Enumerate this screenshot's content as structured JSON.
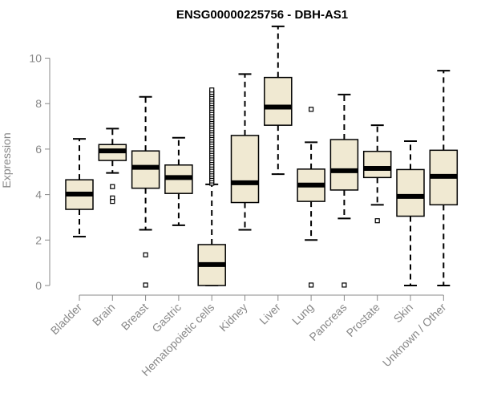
{
  "chart_data": {
    "type": "box",
    "title": "ENSG00000225756 - DBH-AS1",
    "ylabel": "Expression",
    "xlabel": "",
    "ylim": [
      0,
      11.5
    ],
    "yticks": [
      0,
      2,
      4,
      6,
      8,
      10
    ],
    "grid": false,
    "legend": "none",
    "box_fill": "#f0e9d2",
    "box_stroke": "#000000",
    "axis_color": "#888888",
    "categories": [
      "Bladder",
      "Brain",
      "Breast",
      "Gastric",
      "Hematopoietic cells",
      "Kidney",
      "Liver",
      "Lung",
      "Pancreas",
      "Prostate",
      "Skin",
      "Unknown / Other"
    ],
    "boxes": [
      {
        "category": "Bladder",
        "whisker_low": 2.15,
        "q1": 3.35,
        "median": 4.02,
        "q3": 4.65,
        "whisker_high": 6.45,
        "outliers": []
      },
      {
        "category": "Brain",
        "whisker_low": 4.95,
        "q1": 5.5,
        "median": 5.92,
        "q3": 6.2,
        "whisker_high": 6.9,
        "outliers": [
          4.35,
          3.85,
          3.7
        ]
      },
      {
        "category": "Breast",
        "whisker_low": 2.45,
        "q1": 4.28,
        "median": 5.2,
        "q3": 5.92,
        "whisker_high": 8.3,
        "outliers": [
          1.35,
          0.02
        ]
      },
      {
        "category": "Gastric",
        "whisker_low": 2.65,
        "q1": 4.05,
        "median": 4.75,
        "q3": 5.3,
        "whisker_high": 6.5,
        "outliers": []
      },
      {
        "category": "Hematopoietic cells",
        "whisker_low": 0.0,
        "q1": 0.0,
        "median": 0.92,
        "q3": 1.8,
        "whisker_high": 4.45,
        "outliers": [
          4.5,
          4.6,
          4.7,
          4.8,
          4.9,
          5.0,
          5.1,
          5.2,
          5.3,
          5.4,
          5.5,
          5.6,
          5.7,
          5.8,
          5.9,
          6.0,
          6.1,
          6.2,
          6.3,
          6.4,
          6.5,
          6.6,
          6.7,
          6.8,
          6.9,
          7.0,
          7.1,
          7.2,
          7.3,
          7.4,
          7.5,
          7.6,
          7.7,
          7.8,
          7.9,
          8.0,
          8.1,
          8.2,
          8.3,
          8.4,
          8.5,
          8.6
        ]
      },
      {
        "category": "Kidney",
        "whisker_low": 2.45,
        "q1": 3.65,
        "median": 4.52,
        "q3": 6.6,
        "whisker_high": 9.3,
        "outliers": []
      },
      {
        "category": "Liver",
        "whisker_low": 4.9,
        "q1": 7.05,
        "median": 7.85,
        "q3": 9.15,
        "whisker_high": 11.4,
        "outliers": []
      },
      {
        "category": "Lung",
        "whisker_low": 2.0,
        "q1": 3.7,
        "median": 4.42,
        "q3": 5.12,
        "whisker_high": 6.3,
        "outliers": [
          7.75,
          0.02
        ]
      },
      {
        "category": "Pancreas",
        "whisker_low": 2.95,
        "q1": 4.2,
        "median": 5.05,
        "q3": 6.42,
        "whisker_high": 8.4,
        "outliers": [
          0.02
        ]
      },
      {
        "category": "Prostate",
        "whisker_low": 3.55,
        "q1": 4.75,
        "median": 5.15,
        "q3": 5.9,
        "whisker_high": 7.05,
        "outliers": [
          2.85
        ]
      },
      {
        "category": "Skin",
        "whisker_low": 0.0,
        "q1": 3.05,
        "median": 3.92,
        "q3": 5.1,
        "whisker_high": 6.35,
        "outliers": []
      },
      {
        "category": "Unknown / Other",
        "whisker_low": 0.0,
        "q1": 3.55,
        "median": 4.8,
        "q3": 5.95,
        "whisker_high": 9.45,
        "outliers": []
      }
    ]
  }
}
